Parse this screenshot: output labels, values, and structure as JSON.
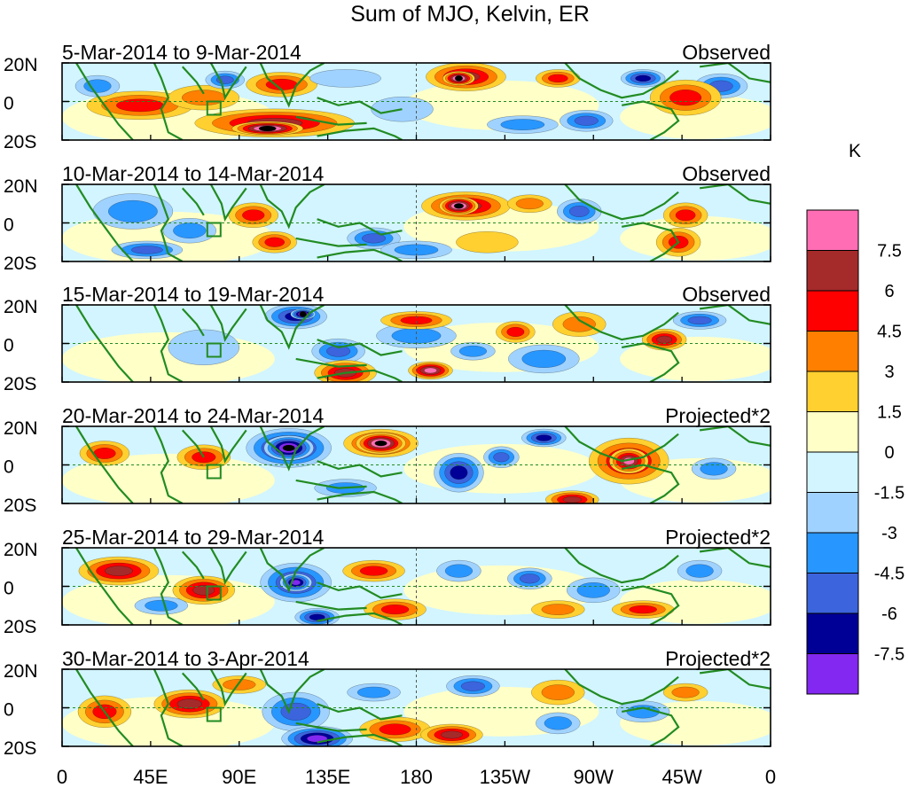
{
  "title": "Sum of MJO, Kelvin, ER",
  "panels": [
    {
      "period": "5-Mar-2014 to 9-Mar-2014",
      "status": "Observed"
    },
    {
      "period": "10-Mar-2014 to 14-Mar-2014",
      "status": "Observed"
    },
    {
      "period": "15-Mar-2014 to 19-Mar-2014",
      "status": "Observed"
    },
    {
      "period": "20-Mar-2014 to 24-Mar-2014",
      "status": "Projected*2"
    },
    {
      "period": "25-Mar-2014 to 29-Mar-2014",
      "status": "Projected*2"
    },
    {
      "period": "30-Mar-2014 to 3-Apr-2014",
      "status": "Projected*2"
    }
  ],
  "lat_labels": [
    "20N",
    "0",
    "20S"
  ],
  "lon_labels": [
    "0",
    "45E",
    "90E",
    "135E",
    "180",
    "135W",
    "90W",
    "45W",
    "0"
  ],
  "legend": {
    "unit": "K",
    "labels": [
      "7.5",
      "6",
      "4.5",
      "3",
      "1.5",
      "0",
      "-1.5",
      "-3",
      "-4.5",
      "-6",
      "-7.5"
    ],
    "colors": [
      "#ff6eb4",
      "#a52a2a",
      "#ff0000",
      "#ff7f00",
      "#ffd030",
      "#ffffc8",
      "#d2f5ff",
      "#a0d2ff",
      "#2896ff",
      "#3c64dc",
      "#000096",
      "#8228f0"
    ]
  },
  "colors": {
    "coast": "#228b22",
    "frame": "#000000"
  }
}
